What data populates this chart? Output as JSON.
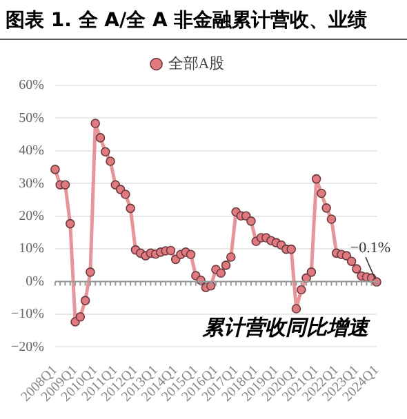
{
  "chart_data": {
    "type": "line",
    "title": "图表 1. 全 A/全 A 非金融累计营收、业绩",
    "categories": [
      "2008Q1",
      null,
      null,
      null,
      "2009Q1",
      null,
      null,
      null,
      "2010Q1",
      null,
      null,
      null,
      "2011Q1",
      null,
      null,
      null,
      "2012Q1",
      null,
      null,
      null,
      "2013Q1",
      null,
      null,
      null,
      "2014Q1",
      null,
      null,
      null,
      "2015Q1",
      null,
      null,
      null,
      "2016Q1",
      null,
      null,
      null,
      "2017Q1",
      null,
      null,
      null,
      "2018Q1",
      null,
      null,
      null,
      "2019Q1",
      null,
      null,
      null,
      "2020Q1",
      null,
      null,
      null,
      "2021Q1",
      null,
      null,
      null,
      "2022Q1",
      null,
      null,
      null,
      "2023Q1",
      null,
      null,
      null,
      "2024Q1"
    ],
    "series": [
      {
        "name": "全部A股",
        "color": "#e07a80",
        "values": [
          34.3,
          29.6,
          29.6,
          17.7,
          -12.3,
          -10.8,
          -5.8,
          2.9,
          48.4,
          44,
          39.7,
          36.8,
          29.6,
          28.2,
          26.7,
          22.4,
          9.7,
          8.7,
          7.9,
          8.7,
          8.4,
          9,
          9.4,
          9.5,
          6.8,
          8.3,
          9,
          8.3,
          1.8,
          0.4,
          -1.8,
          -1.3,
          3.7,
          2.6,
          5,
          7.5,
          21.3,
          20.1,
          20.1,
          18.5,
          12.3,
          13.4,
          13.4,
          12.5,
          11.9,
          11.2,
          9.9,
          9.9,
          -8.3,
          -2.5,
          1.1,
          2.9,
          31.4,
          27,
          22.5,
          19.1,
          8.7,
          8.3,
          7.9,
          6.2,
          3.9,
          1.7,
          1.4,
          1.1,
          -0.1
        ]
      }
    ],
    "ylim": [
      -20,
      60
    ],
    "yticks": [
      {
        "value": -20,
        "label": "−20%"
      },
      {
        "value": -10,
        "label": "−10%"
      },
      {
        "value": 0,
        "label": "0%"
      },
      {
        "value": 10,
        "label": "10%"
      },
      {
        "value": 20,
        "label": "20%"
      },
      {
        "value": 30,
        "label": "30%"
      },
      {
        "value": 40,
        "label": "40%"
      },
      {
        "value": 50,
        "label": "50%"
      },
      {
        "value": 60,
        "label": "60%"
      }
    ],
    "annotations": [
      {
        "text": "−0.1%",
        "x": "2024Q1",
        "y": -0.1
      },
      "累计营收同比增速"
    ],
    "grid": "y",
    "legend": "top",
    "marker": "circle",
    "line_style": "solid"
  }
}
